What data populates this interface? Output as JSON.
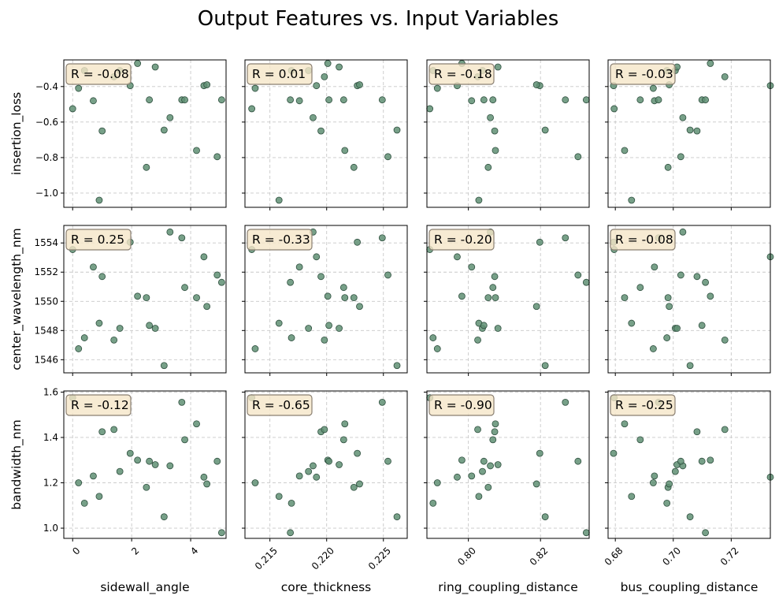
{
  "title": "Output Features vs. Input Variables",
  "colors": {
    "point": "#5f8f73",
    "point_edge": "#2f4f3f",
    "badge_bg": "#f5e6c8",
    "badge_edge": "#8a7f72",
    "grid": "#c8c8c8"
  },
  "chart_data": {
    "type": "scatter",
    "title": "Output Features vs. Input Variables",
    "grid": true,
    "columns": [
      {
        "xlabel": "sidewall_angle",
        "xlim": [
          -0.3,
          5.2
        ],
        "xticks": [
          0,
          2,
          4
        ],
        "xtick_labels": [
          "0",
          "2",
          "4"
        ]
      },
      {
        "xlabel": "core_thickness",
        "xlim": [
          0.2128,
          0.2271
        ],
        "xticks": [
          0.215,
          0.22,
          0.225
        ],
        "xtick_labels": [
          "0.215",
          "0.220",
          "0.225"
        ]
      },
      {
        "xlabel": "ring_coupling_distance",
        "xlim": [
          0.7885,
          0.8335
        ],
        "xticks": [
          0.8,
          0.82
        ],
        "xtick_labels": [
          "0.80",
          "0.82"
        ]
      },
      {
        "xlabel": "bus_coupling_distance",
        "xlim": [
          0.6775,
          0.7335
        ],
        "xticks": [
          0.68,
          0.7,
          0.72
        ],
        "xtick_labels": [
          "0.68",
          "0.70",
          "0.72"
        ]
      }
    ],
    "rows": [
      {
        "ylabel": "insertion_loss",
        "ylim": [
          -1.08,
          -0.25
        ],
        "yticks": [
          -1.0,
          -0.8,
          -0.6,
          -0.4
        ],
        "ytick_labels": [
          "−1.0",
          "−0.8",
          "−0.6",
          "−0.4"
        ]
      },
      {
        "ylabel": "center_wavelength_nm",
        "ylim": [
          1545.1,
          1555.2
        ],
        "yticks": [
          1546,
          1548,
          1550,
          1552,
          1554
        ],
        "ytick_labels": [
          "1546",
          "1548",
          "1550",
          "1552",
          "1554"
        ]
      },
      {
        "ylabel": "bandwidth_nm",
        "ylim": [
          0.955,
          1.605
        ],
        "yticks": [
          1.0,
          1.2,
          1.4,
          1.6
        ],
        "ytick_labels": [
          "1.0",
          "1.2",
          "1.4",
          "1.6"
        ]
      }
    ],
    "correlations": [
      [
        "R = -0.08",
        "R = 0.01",
        "R = -0.18",
        "R = -0.03"
      ],
      [
        "R = 0.25",
        "R = -0.33",
        "R = -0.20",
        "R = -0.08"
      ],
      [
        "R = -0.12",
        "R = -0.65",
        "R = -0.90",
        "R = -0.25"
      ]
    ],
    "inputs": {
      "sidewall_angle": [
        0.0,
        0.2,
        0.4,
        0.7,
        0.9,
        1.0,
        1.4,
        1.6,
        1.95,
        2.2,
        2.5,
        2.6,
        2.8,
        3.1,
        3.3,
        3.7,
        3.8,
        4.2,
        4.45,
        4.55,
        4.9,
        5.05
      ],
      "core_thickness": [
        0.2134,
        0.2137,
        0.2169,
        0.2176,
        0.2158,
        0.2195,
        0.2198,
        0.2184,
        0.2227,
        0.2201,
        0.2224,
        0.2202,
        0.2211,
        0.2262,
        0.2188,
        0.2249,
        0.2215,
        0.2216,
        0.2191,
        0.2229,
        0.2254,
        0.2168
      ],
      "ring_coupling_distance": [
        0.7893,
        0.7914,
        0.7902,
        0.8009,
        0.8029,
        0.8073,
        0.8026,
        0.8039,
        0.8198,
        0.7982,
        0.8055,
        0.8043,
        0.8082,
        0.8213,
        0.8061,
        0.8269,
        0.8068,
        0.8075,
        0.7969,
        0.8189,
        0.8304,
        0.8327
      ],
      "bus_coupling_distance": [
        0.6796,
        0.6931,
        0.6978,
        0.6935,
        0.6856,
        0.7082,
        0.7178,
        0.7007,
        0.6794,
        0.7128,
        0.6982,
        0.7099,
        0.7013,
        0.7058,
        0.7033,
        0.6949,
        0.6886,
        0.6832,
        0.7335,
        0.6986,
        0.7026,
        0.7111
      ]
    },
    "outputs": {
      "insertion_loss": [
        -0.525,
        -0.41,
        -0.31,
        -0.48,
        -1.04,
        -0.65,
        -0.345,
        -0.31,
        -0.395,
        -0.27,
        -0.855,
        -0.475,
        -0.29,
        -0.645,
        -0.575,
        -0.475,
        -0.475,
        -0.76,
        -0.395,
        -0.39,
        -0.795,
        -0.475
      ],
      "center_wavelength_nm": [
        1553.55,
        1546.75,
        1547.5,
        1552.35,
        1548.5,
        1551.7,
        1547.35,
        1548.15,
        1554.05,
        1550.35,
        1550.25,
        1548.35,
        1548.15,
        1545.6,
        1554.75,
        1554.35,
        1550.95,
        1550.25,
        1553.05,
        1549.65,
        1551.8,
        1551.3
      ],
      "bandwidth_nm": [
        1.575,
        1.2,
        1.11,
        1.23,
        1.14,
        1.425,
        1.435,
        1.25,
        1.33,
        1.3,
        1.18,
        1.295,
        1.28,
        1.05,
        1.275,
        1.555,
        1.39,
        1.46,
        1.225,
        1.195,
        1.295,
        0.98
      ]
    }
  }
}
